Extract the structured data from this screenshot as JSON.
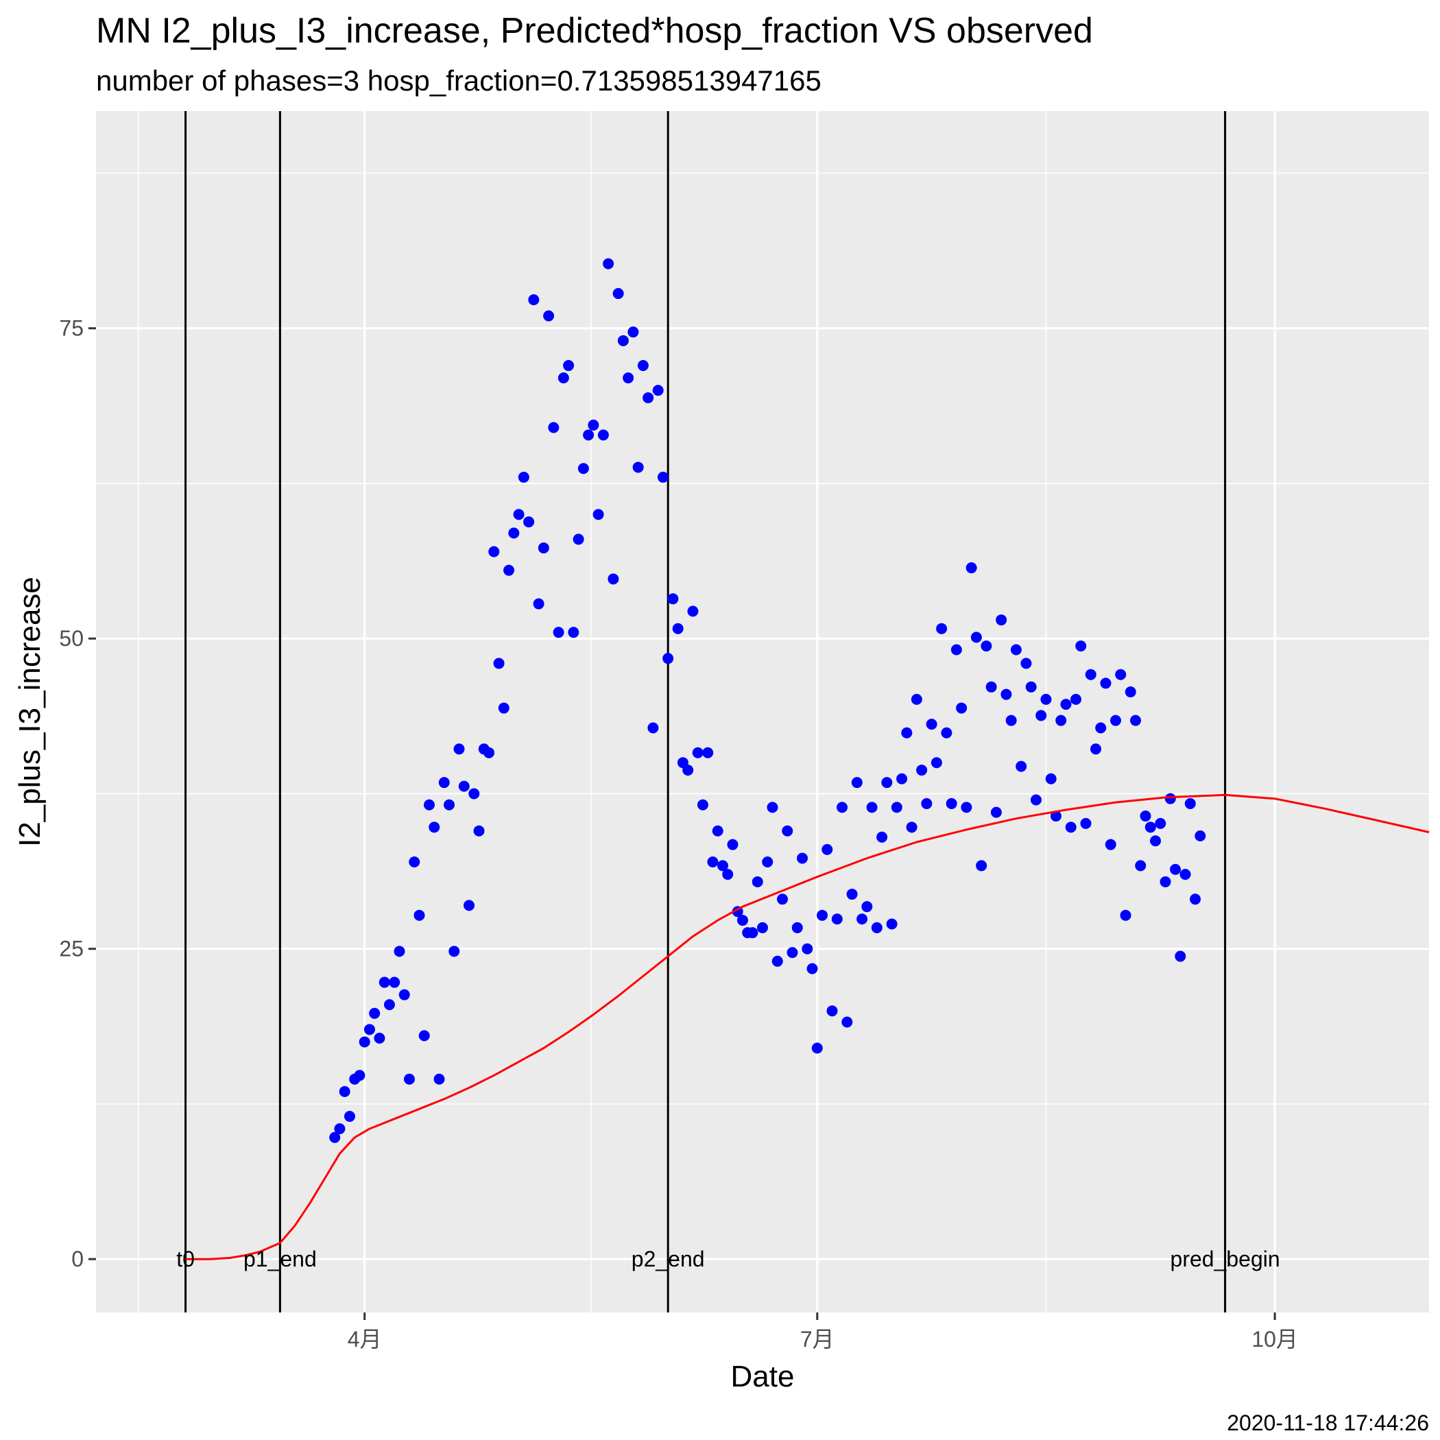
{
  "chart_data": {
    "type": "scatter",
    "title": "MN I2_plus_I3_increase, Predicted*hosp_fraction VS observed",
    "subtitle": "number of phases=3   hosp_fraction=0.713598513947165",
    "xlabel": "Date",
    "ylabel": "I2_plus_I3_increase",
    "caption": "2020-11-18 17:44:26",
    "xlim": [
      "2020-02-07",
      "2020-11-01"
    ],
    "ylim": [
      -4.3,
      92.5
    ],
    "grid": true,
    "legend": "none",
    "x_ticks": [
      {
        "date": "2020-04-01",
        "label": "4月"
      },
      {
        "date": "2020-07-01",
        "label": "7月"
      },
      {
        "date": "2020-10-01",
        "label": "10月"
      }
    ],
    "y_ticks": [
      0,
      25,
      50,
      75
    ],
    "colors": {
      "panel": "#ebebeb",
      "grid": "#ffffff",
      "observed": "#0000ff",
      "predicted": "#ff0000",
      "vlines": "#000000"
    },
    "vlines": [
      {
        "date": "2020-02-25",
        "label": "t0"
      },
      {
        "date": "2020-03-15",
        "label": "p1_end"
      },
      {
        "date": "2020-06-01",
        "label": "p2_end"
      },
      {
        "date": "2020-09-21",
        "label": "pred_begin"
      }
    ],
    "series": [
      {
        "kind": "points",
        "color": "#0000ff",
        "points": [
          [
            "2020-03-26",
            9.8
          ],
          [
            "2020-03-27",
            10.5
          ],
          [
            "2020-03-28",
            13.5
          ],
          [
            "2020-03-29",
            11.5
          ],
          [
            "2020-03-30",
            14.5
          ],
          [
            "2020-03-31",
            14.8
          ],
          [
            "2020-04-01",
            17.5
          ],
          [
            "2020-04-02",
            18.5
          ],
          [
            "2020-04-03",
            19.8
          ],
          [
            "2020-04-04",
            17.8
          ],
          [
            "2020-04-05",
            22.3
          ],
          [
            "2020-04-06",
            20.5
          ],
          [
            "2020-04-07",
            22.3
          ],
          [
            "2020-04-08",
            24.8
          ],
          [
            "2020-04-09",
            21.3
          ],
          [
            "2020-04-10",
            14.5
          ],
          [
            "2020-04-11",
            32.0
          ],
          [
            "2020-04-12",
            27.7
          ],
          [
            "2020-04-13",
            18.0
          ],
          [
            "2020-04-14",
            36.6
          ],
          [
            "2020-04-15",
            34.8
          ],
          [
            "2020-04-16",
            14.5
          ],
          [
            "2020-04-17",
            38.4
          ],
          [
            "2020-04-18",
            36.6
          ],
          [
            "2020-04-19",
            24.8
          ],
          [
            "2020-04-20",
            41.1
          ],
          [
            "2020-04-21",
            38.1
          ],
          [
            "2020-04-22",
            28.5
          ],
          [
            "2020-04-23",
            37.5
          ],
          [
            "2020-04-24",
            34.5
          ],
          [
            "2020-04-25",
            41.1
          ],
          [
            "2020-04-26",
            40.8
          ],
          [
            "2020-04-27",
            57.0
          ],
          [
            "2020-04-28",
            48.0
          ],
          [
            "2020-04-29",
            44.4
          ],
          [
            "2020-04-30",
            55.5
          ],
          [
            "2020-05-01",
            58.5
          ],
          [
            "2020-05-02",
            60.0
          ],
          [
            "2020-05-03",
            63.0
          ],
          [
            "2020-05-04",
            59.4
          ],
          [
            "2020-05-05",
            77.3
          ],
          [
            "2020-05-06",
            52.8
          ],
          [
            "2020-05-07",
            57.3
          ],
          [
            "2020-05-08",
            76.0
          ],
          [
            "2020-05-09",
            67.0
          ],
          [
            "2020-05-10",
            50.5
          ],
          [
            "2020-05-11",
            71.0
          ],
          [
            "2020-05-12",
            72.0
          ],
          [
            "2020-05-13",
            50.5
          ],
          [
            "2020-05-14",
            58.0
          ],
          [
            "2020-05-15",
            63.7
          ],
          [
            "2020-05-16",
            66.4
          ],
          [
            "2020-05-17",
            67.2
          ],
          [
            "2020-05-18",
            60.0
          ],
          [
            "2020-05-19",
            66.4
          ],
          [
            "2020-05-20",
            80.2
          ],
          [
            "2020-05-21",
            54.8
          ],
          [
            "2020-05-22",
            77.8
          ],
          [
            "2020-05-23",
            74.0
          ],
          [
            "2020-05-24",
            71.0
          ],
          [
            "2020-05-25",
            74.7
          ],
          [
            "2020-05-26",
            63.8
          ],
          [
            "2020-05-27",
            72.0
          ],
          [
            "2020-05-28",
            69.4
          ],
          [
            "2020-05-29",
            42.8
          ],
          [
            "2020-05-30",
            70.0
          ],
          [
            "2020-05-31",
            63.0
          ],
          [
            "2020-06-01",
            48.4
          ],
          [
            "2020-06-02",
            53.2
          ],
          [
            "2020-06-03",
            50.8
          ],
          [
            "2020-06-04",
            40.0
          ],
          [
            "2020-06-05",
            39.4
          ],
          [
            "2020-06-06",
            52.2
          ],
          [
            "2020-06-07",
            40.8
          ],
          [
            "2020-06-08",
            36.6
          ],
          [
            "2020-06-09",
            40.8
          ],
          [
            "2020-06-10",
            32.0
          ],
          [
            "2020-06-11",
            34.5
          ],
          [
            "2020-06-12",
            31.7
          ],
          [
            "2020-06-13",
            31.0
          ],
          [
            "2020-06-14",
            33.4
          ],
          [
            "2020-06-15",
            28.0
          ],
          [
            "2020-06-16",
            27.3
          ],
          [
            "2020-06-17",
            26.3
          ],
          [
            "2020-06-18",
            26.3
          ],
          [
            "2020-06-19",
            30.4
          ],
          [
            "2020-06-20",
            26.7
          ],
          [
            "2020-06-21",
            32.0
          ],
          [
            "2020-06-22",
            36.4
          ],
          [
            "2020-06-23",
            24.0
          ],
          [
            "2020-06-24",
            29.0
          ],
          [
            "2020-06-25",
            34.5
          ],
          [
            "2020-06-26",
            24.7
          ],
          [
            "2020-06-27",
            26.7
          ],
          [
            "2020-06-28",
            32.3
          ],
          [
            "2020-06-29",
            25.0
          ],
          [
            "2020-06-30",
            23.4
          ],
          [
            "2020-07-01",
            17.0
          ],
          [
            "2020-07-02",
            27.7
          ],
          [
            "2020-07-03",
            33.0
          ],
          [
            "2020-07-04",
            20.0
          ],
          [
            "2020-07-05",
            27.4
          ],
          [
            "2020-07-06",
            36.4
          ],
          [
            "2020-07-07",
            19.1
          ],
          [
            "2020-07-08",
            29.4
          ],
          [
            "2020-07-09",
            38.4
          ],
          [
            "2020-07-10",
            27.4
          ],
          [
            "2020-07-11",
            28.4
          ],
          [
            "2020-07-12",
            36.4
          ],
          [
            "2020-07-13",
            26.7
          ],
          [
            "2020-07-14",
            34.0
          ],
          [
            "2020-07-15",
            38.4
          ],
          [
            "2020-07-16",
            27.0
          ],
          [
            "2020-07-17",
            36.4
          ],
          [
            "2020-07-18",
            38.7
          ],
          [
            "2020-07-19",
            42.4
          ],
          [
            "2020-07-20",
            34.8
          ],
          [
            "2020-07-21",
            45.1
          ],
          [
            "2020-07-22",
            39.4
          ],
          [
            "2020-07-23",
            36.7
          ],
          [
            "2020-07-24",
            43.1
          ],
          [
            "2020-07-25",
            40.0
          ],
          [
            "2020-07-26",
            50.8
          ],
          [
            "2020-07-27",
            42.4
          ],
          [
            "2020-07-28",
            36.7
          ],
          [
            "2020-07-29",
            49.1
          ],
          [
            "2020-07-30",
            44.4
          ],
          [
            "2020-07-31",
            36.4
          ],
          [
            "2020-08-01",
            55.7
          ],
          [
            "2020-08-02",
            50.1
          ],
          [
            "2020-08-03",
            31.7
          ],
          [
            "2020-08-04",
            49.4
          ],
          [
            "2020-08-05",
            46.1
          ],
          [
            "2020-08-06",
            36.0
          ],
          [
            "2020-08-07",
            51.5
          ],
          [
            "2020-08-08",
            45.5
          ],
          [
            "2020-08-09",
            43.4
          ],
          [
            "2020-08-10",
            49.1
          ],
          [
            "2020-08-11",
            39.7
          ],
          [
            "2020-08-12",
            48.0
          ],
          [
            "2020-08-13",
            46.1
          ],
          [
            "2020-08-14",
            37.0
          ],
          [
            "2020-08-15",
            43.8
          ],
          [
            "2020-08-16",
            45.1
          ],
          [
            "2020-08-17",
            38.7
          ],
          [
            "2020-08-18",
            35.7
          ],
          [
            "2020-08-19",
            43.4
          ],
          [
            "2020-08-20",
            44.7
          ],
          [
            "2020-08-21",
            34.8
          ],
          [
            "2020-08-22",
            45.1
          ],
          [
            "2020-08-23",
            49.4
          ],
          [
            "2020-08-24",
            35.1
          ],
          [
            "2020-08-25",
            47.1
          ],
          [
            "2020-08-26",
            41.1
          ],
          [
            "2020-08-27",
            42.8
          ],
          [
            "2020-08-28",
            46.4
          ],
          [
            "2020-08-29",
            33.4
          ],
          [
            "2020-08-30",
            43.4
          ],
          [
            "2020-08-31",
            47.1
          ],
          [
            "2020-09-01",
            27.7
          ],
          [
            "2020-09-02",
            45.7
          ],
          [
            "2020-09-03",
            43.4
          ],
          [
            "2020-09-04",
            31.7
          ],
          [
            "2020-09-05",
            35.7
          ],
          [
            "2020-09-06",
            34.8
          ],
          [
            "2020-09-07",
            33.7
          ],
          [
            "2020-09-08",
            35.1
          ],
          [
            "2020-09-09",
            30.4
          ],
          [
            "2020-09-10",
            37.1
          ],
          [
            "2020-09-11",
            31.4
          ],
          [
            "2020-09-12",
            24.4
          ],
          [
            "2020-09-13",
            31.0
          ],
          [
            "2020-09-14",
            36.7
          ],
          [
            "2020-09-15",
            29.0
          ],
          [
            "2020-09-16",
            34.1
          ]
        ]
      },
      {
        "kind": "line",
        "color": "#ff0000",
        "points": [
          [
            "2020-02-25",
            0.0
          ],
          [
            "2020-03-01",
            0.0
          ],
          [
            "2020-03-05",
            0.1
          ],
          [
            "2020-03-08",
            0.3
          ],
          [
            "2020-03-11",
            0.6
          ],
          [
            "2020-03-15",
            1.3
          ],
          [
            "2020-03-18",
            2.7
          ],
          [
            "2020-03-21",
            4.5
          ],
          [
            "2020-03-24",
            6.5
          ],
          [
            "2020-03-27",
            8.5
          ],
          [
            "2020-03-30",
            9.8
          ],
          [
            "2020-04-02",
            10.5
          ],
          [
            "2020-04-07",
            11.3
          ],
          [
            "2020-04-12",
            12.1
          ],
          [
            "2020-04-17",
            12.9
          ],
          [
            "2020-04-22",
            13.8
          ],
          [
            "2020-04-27",
            14.8
          ],
          [
            "2020-05-02",
            15.9
          ],
          [
            "2020-05-07",
            17.0
          ],
          [
            "2020-05-12",
            18.3
          ],
          [
            "2020-05-17",
            19.7
          ],
          [
            "2020-05-22",
            21.2
          ],
          [
            "2020-05-27",
            22.8
          ],
          [
            "2020-06-01",
            24.4
          ],
          [
            "2020-06-06",
            26.0
          ],
          [
            "2020-06-11",
            27.3
          ],
          [
            "2020-06-16",
            28.4
          ],
          [
            "2020-06-21",
            29.2
          ],
          [
            "2020-06-26",
            30.0
          ],
          [
            "2020-07-01",
            30.8
          ],
          [
            "2020-07-11",
            32.3
          ],
          [
            "2020-07-21",
            33.6
          ],
          [
            "2020-07-31",
            34.6
          ],
          [
            "2020-08-10",
            35.5
          ],
          [
            "2020-08-20",
            36.2
          ],
          [
            "2020-08-30",
            36.8
          ],
          [
            "2020-09-09",
            37.2
          ],
          [
            "2020-09-21",
            37.4
          ],
          [
            "2020-10-01",
            37.1
          ],
          [
            "2020-10-11",
            36.3
          ],
          [
            "2020-10-21",
            35.4
          ],
          [
            "2020-11-01",
            34.4
          ]
        ]
      }
    ]
  }
}
